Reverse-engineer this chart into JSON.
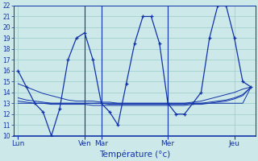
{
  "background_color": "#cce8e8",
  "grid_color": "#99cccc",
  "line_color": "#1133aa",
  "xlabel": "Température (°c)",
  "ylim": [
    10,
    22
  ],
  "yticks": [
    10,
    11,
    12,
    13,
    14,
    15,
    16,
    17,
    18,
    19,
    20,
    21,
    22
  ],
  "day_labels": [
    "Lun",
    "Ven",
    "Mar",
    "Mer",
    "Jeu"
  ],
  "day_x": [
    0,
    8,
    10,
    18,
    26
  ],
  "n_points": 29,
  "main_line": [
    16,
    14.5,
    13.0,
    12.2,
    10.0,
    12.5,
    17.0,
    19.0,
    19.5,
    17.0,
    13.0,
    12.2,
    11.0,
    14.8,
    18.5,
    21.0,
    21.0,
    18.5,
    13.0,
    12.0,
    12.0,
    13.0,
    14.0,
    19.0,
    22.0,
    22.0,
    19.0,
    15.0,
    14.5
  ],
  "flat1": [
    14.8,
    14.5,
    14.2,
    13.9,
    13.7,
    13.5,
    13.3,
    13.2,
    13.2,
    13.2,
    13.1,
    13.1,
    13.0,
    13.0,
    13.0,
    13.0,
    13.0,
    13.0,
    13.0,
    13.0,
    13.0,
    13.1,
    13.2,
    13.4,
    13.6,
    13.8,
    14.0,
    14.3,
    14.5
  ],
  "flat2": [
    13.5,
    13.3,
    13.2,
    13.1,
    13.0,
    13.0,
    13.0,
    13.0,
    13.0,
    13.0,
    13.0,
    12.9,
    12.9,
    12.9,
    12.9,
    12.9,
    12.9,
    12.9,
    12.9,
    12.9,
    12.9,
    13.0,
    13.0,
    13.1,
    13.2,
    13.3,
    13.5,
    13.8,
    14.5
  ],
  "flat3": [
    13.2,
    13.1,
    13.0,
    13.0,
    12.9,
    12.9,
    12.9,
    12.9,
    12.9,
    12.8,
    12.8,
    12.8,
    12.8,
    12.8,
    12.8,
    12.8,
    12.8,
    12.8,
    12.8,
    12.8,
    12.8,
    12.9,
    12.9,
    13.0,
    13.1,
    13.2,
    13.4,
    13.7,
    14.5
  ],
  "flat4": [
    13.0,
    13.0,
    13.0,
    13.0,
    13.0,
    13.0,
    13.0,
    13.0,
    13.0,
    13.0,
    13.0,
    13.0,
    13.0,
    13.0,
    13.0,
    13.0,
    13.0,
    13.0,
    13.0,
    13.0,
    13.0,
    13.0,
    13.0,
    13.0,
    13.0,
    13.0,
    13.0,
    13.0,
    14.5
  ]
}
